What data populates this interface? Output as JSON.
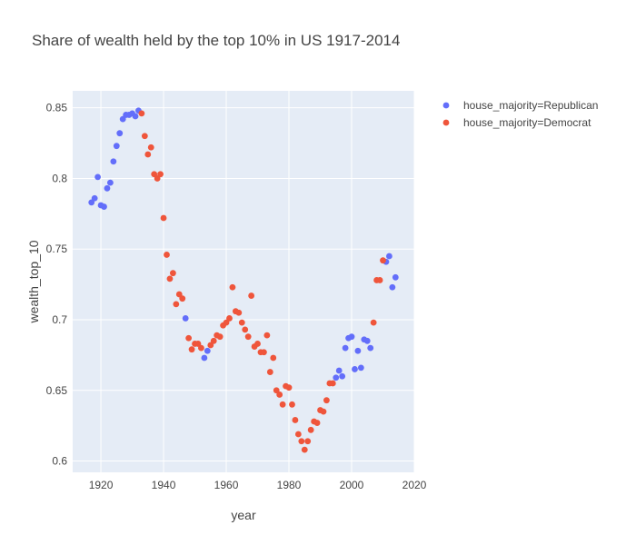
{
  "chart_data": {
    "type": "scatter",
    "title": "Share of wealth held by the top 10% in US 1917-2014",
    "xlabel": "year",
    "ylabel": "wealth_top_10",
    "xlim": [
      1911,
      2020
    ],
    "ylim": [
      0.592,
      0.862
    ],
    "x_ticks": [
      1920,
      1940,
      1960,
      1980,
      2000,
      2020
    ],
    "x_tick_labels": [
      "1920",
      "1940",
      "1960",
      "1980",
      "2000",
      "2020"
    ],
    "y_ticks": [
      0.6,
      0.65,
      0.7,
      0.75,
      0.8,
      0.85
    ],
    "y_tick_labels": [
      "0.6",
      "0.65",
      "0.7",
      "0.75",
      "0.8",
      "0.85"
    ],
    "grid": true,
    "legend_position": "top-right",
    "plot_background": "#E5ECF6",
    "series": [
      {
        "name": "house_majority=Republican",
        "color": "#636EFA",
        "points": [
          [
            1917,
            0.783
          ],
          [
            1918,
            0.786
          ],
          [
            1919,
            0.801
          ],
          [
            1920,
            0.781
          ],
          [
            1921,
            0.78
          ],
          [
            1922,
            0.793
          ],
          [
            1923,
            0.797
          ],
          [
            1924,
            0.812
          ],
          [
            1925,
            0.823
          ],
          [
            1926,
            0.832
          ],
          [
            1927,
            0.842
          ],
          [
            1928,
            0.845
          ],
          [
            1929,
            0.845
          ],
          [
            1930,
            0.846
          ],
          [
            1931,
            0.844
          ],
          [
            1932,
            0.848
          ],
          [
            1947,
            0.701
          ],
          [
            1953,
            0.673
          ],
          [
            1954,
            0.678
          ],
          [
            1995,
            0.659
          ],
          [
            1996,
            0.664
          ],
          [
            1997,
            0.66
          ],
          [
            1998,
            0.68
          ],
          [
            1999,
            0.687
          ],
          [
            2000,
            0.688
          ],
          [
            2001,
            0.665
          ],
          [
            2002,
            0.678
          ],
          [
            2003,
            0.666
          ],
          [
            2004,
            0.686
          ],
          [
            2005,
            0.685
          ],
          [
            2006,
            0.68
          ],
          [
            2011,
            0.741
          ],
          [
            2012,
            0.745
          ],
          [
            2013,
            0.723
          ],
          [
            2014,
            0.73
          ]
        ]
      },
      {
        "name": "house_majority=Democrat",
        "color": "#EF553B",
        "points": [
          [
            1933,
            0.846
          ],
          [
            1934,
            0.83
          ],
          [
            1935,
            0.817
          ],
          [
            1936,
            0.822
          ],
          [
            1937,
            0.803
          ],
          [
            1938,
            0.8
          ],
          [
            1939,
            0.803
          ],
          [
            1940,
            0.772
          ],
          [
            1941,
            0.746
          ],
          [
            1942,
            0.729
          ],
          [
            1943,
            0.733
          ],
          [
            1944,
            0.711
          ],
          [
            1945,
            0.718
          ],
          [
            1946,
            0.715
          ],
          [
            1948,
            0.687
          ],
          [
            1949,
            0.679
          ],
          [
            1950,
            0.683
          ],
          [
            1951,
            0.683
          ],
          [
            1952,
            0.68
          ],
          [
            1955,
            0.682
          ],
          [
            1956,
            0.685
          ],
          [
            1957,
            0.689
          ],
          [
            1958,
            0.688
          ],
          [
            1959,
            0.696
          ],
          [
            1960,
            0.698
          ],
          [
            1961,
            0.701
          ],
          [
            1962,
            0.723
          ],
          [
            1963,
            0.706
          ],
          [
            1964,
            0.705
          ],
          [
            1965,
            0.698
          ],
          [
            1966,
            0.693
          ],
          [
            1967,
            0.688
          ],
          [
            1968,
            0.717
          ],
          [
            1969,
            0.681
          ],
          [
            1970,
            0.683
          ],
          [
            1971,
            0.677
          ],
          [
            1972,
            0.677
          ],
          [
            1973,
            0.689
          ],
          [
            1974,
            0.663
          ],
          [
            1975,
            0.673
          ],
          [
            1976,
            0.65
          ],
          [
            1977,
            0.647
          ],
          [
            1978,
            0.64
          ],
          [
            1979,
            0.653
          ],
          [
            1980,
            0.652
          ],
          [
            1981,
            0.64
          ],
          [
            1982,
            0.629
          ],
          [
            1983,
            0.619
          ],
          [
            1984,
            0.614
          ],
          [
            1985,
            0.608
          ],
          [
            1986,
            0.614
          ],
          [
            1987,
            0.622
          ],
          [
            1988,
            0.628
          ],
          [
            1989,
            0.627
          ],
          [
            1990,
            0.636
          ],
          [
            1991,
            0.635
          ],
          [
            1992,
            0.643
          ],
          [
            1993,
            0.655
          ],
          [
            1994,
            0.655
          ],
          [
            2007,
            0.698
          ],
          [
            2008,
            0.728
          ],
          [
            2009,
            0.728
          ],
          [
            2010,
            0.742
          ]
        ]
      }
    ]
  }
}
